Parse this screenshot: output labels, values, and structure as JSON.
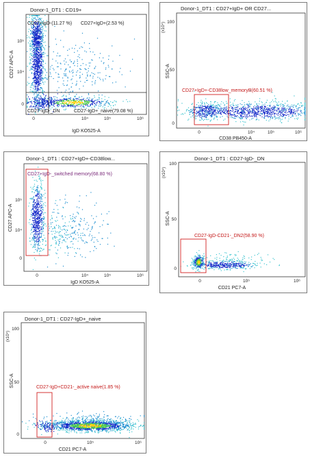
{
  "chart_data": [
    {
      "type": "scatter",
      "title": "Donor-1_DT1 : CD19+",
      "xlabel": "IgD KO525-A",
      "ylabel": "CD27 APC-A",
      "x_ticks": [
        "0",
        "10⁴",
        "10⁵",
        "10⁶"
      ],
      "y_ticks": [
        "0",
        "10⁴",
        "10⁵"
      ],
      "gates": [
        {
          "name": "CD27+IgD-",
          "percent": 11.27,
          "label": "CD27+IgD-(11.27 %)"
        },
        {
          "name": "CD27+IgD+",
          "percent": 2.53,
          "label": "CD27+IgD+(2.53 %)"
        },
        {
          "name": "CD27-IgD-",
          "label": "CD27-IgD-_DN"
        },
        {
          "name": "CD27-IgD+_naive",
          "percent": 79.08,
          "label": "CD27-IgD+_naive(79.08 %)"
        }
      ]
    },
    {
      "type": "scatter",
      "title": "Donor-1_DT1 : CD27+IgD+ OR CD27...",
      "xlabel": "CD38 PB450-A",
      "ylabel": "SSC-A",
      "y_unit": "(x10⁴)",
      "x_ticks": [
        "0",
        "10⁴",
        "10⁵",
        "10⁶"
      ],
      "y_ticks": [
        "0",
        "50",
        "100"
      ],
      "gates": [
        {
          "name": "CD27+IgD+-CD38low_memory B",
          "percent": 60.51,
          "label": "CD27+IgD+-CD38low_memoryB(60.51 %)"
        }
      ]
    },
    {
      "type": "scatter",
      "title": "Donor-1_DT1 : CD27+IgD+-CD38low...",
      "xlabel": "IgD KO525-A",
      "ylabel": "CD27 APC-A",
      "x_ticks": [
        "0",
        "10⁴",
        "10⁵",
        "10⁶"
      ],
      "y_ticks": [
        "0",
        "10⁴",
        "10⁵"
      ],
      "gates": [
        {
          "name": "CD27+IgD-_switched memory",
          "percent": 68.8,
          "label": "CD27+IgD-_switched memory(68.80 %)"
        }
      ]
    },
    {
      "type": "scatter",
      "title": "Donor-1_DT1 : CD27-IgD-_DN",
      "xlabel": "CD21 PC7-A",
      "ylabel": "SSC-A",
      "y_unit": "(x10⁴)",
      "x_ticks": [
        "0",
        "10⁵",
        "10⁶"
      ],
      "y_ticks": [
        "0",
        "50",
        "100"
      ],
      "gates": [
        {
          "name": "CD27-IgD-CD21-_DN2",
          "percent": 58.9,
          "label": "CD27-IgD-CD21-_DN2(58.90 %)"
        }
      ]
    },
    {
      "type": "scatter",
      "title": "Donor-1_DT1 : CD27-IgD+_naive",
      "xlabel": "CD21 PC7-A",
      "ylabel": "SSC-A",
      "y_unit": "(x10⁴)",
      "x_ticks": [
        "0",
        "10⁵",
        "10⁶"
      ],
      "y_ticks": [
        "0",
        "50",
        "100"
      ],
      "gates": [
        {
          "name": "CD27-IgD+CD21-_active naive",
          "percent": 1.85,
          "label": "CD27-IgD+CD21-_active naive(1.85 %)"
        }
      ]
    }
  ],
  "colors": {
    "gate_red": "#d02020",
    "gate_dark": "#202020",
    "dense": "#1428c8",
    "mid": "#1f8fd0",
    "sparse": "#3bc4cf",
    "hot": "#ffd000",
    "green": "#48c848"
  }
}
